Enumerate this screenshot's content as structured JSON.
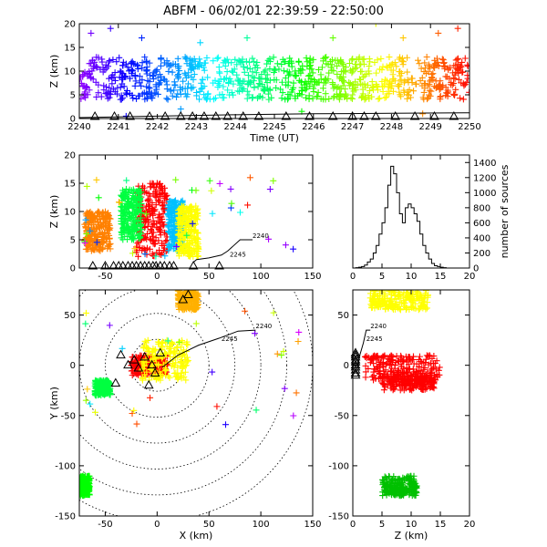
{
  "title": "ABFM - 06/02/01 22:39:59 - 22:50:00",
  "chart_data": [
    {
      "id": "time-height",
      "type": "scatter",
      "xlabel": "Time (UT)",
      "ylabel": "Z (km)",
      "xlim": [
        2240,
        2250
      ],
      "ylim": [
        0,
        20
      ],
      "xticks": [
        "2240",
        "2241",
        "2242",
        "2243",
        "2244",
        "2245",
        "2246",
        "2247",
        "2248",
        "2249",
        "2250"
      ],
      "yticks": [
        "0",
        "5",
        "10",
        "15",
        "20"
      ],
      "color_scale": "time (purple to red)",
      "sources_z_band_km": [
        4,
        13
      ],
      "outliers": [
        {
          "x": 2240.3,
          "y": 18
        },
        {
          "x": 2240.8,
          "y": 19
        },
        {
          "x": 2241.6,
          "y": 17
        },
        {
          "x": 2243.1,
          "y": 16
        },
        {
          "x": 2244.3,
          "y": 17
        },
        {
          "x": 2246.5,
          "y": 17
        },
        {
          "x": 2247.6,
          "y": 20
        },
        {
          "x": 2248.3,
          "y": 17
        },
        {
          "x": 2249.2,
          "y": 18
        },
        {
          "x": 2249.7,
          "y": 19
        },
        {
          "x": 2242.6,
          "y": 2
        },
        {
          "x": 2245.7,
          "y": 1.5
        },
        {
          "x": 2248.8,
          "y": 1
        },
        {
          "x": 2241.2,
          "y": 0.5
        }
      ],
      "trend_line": [
        [
          2240,
          0.2
        ],
        [
          2242,
          0.5
        ],
        [
          2244,
          0.8
        ],
        [
          2246,
          1.0
        ],
        [
          2248,
          1.1
        ],
        [
          2250,
          1.2
        ]
      ],
      "station_markers_x": [
        2240.4,
        2240.9,
        2241.3,
        2241.8,
        2242.2,
        2242.6,
        2242.9,
        2243.2,
        2243.5,
        2243.8,
        2244.2,
        2244.6,
        2245.3,
        2245.9,
        2246.5,
        2247.0,
        2247.3,
        2247.6,
        2248.1,
        2248.6,
        2249.1,
        2249.6
      ]
    },
    {
      "id": "x-height",
      "type": "scatter",
      "xlabel": "",
      "ylabel": "Z (km)",
      "xlim": [
        -75,
        150
      ],
      "ylim": [
        0,
        20
      ],
      "xticks": [
        "-50",
        "0",
        "50",
        "100",
        "150"
      ],
      "yticks": [
        "0",
        "5",
        "10",
        "15",
        "20"
      ],
      "clusters": [
        {
          "x": [
            -20,
            10
          ],
          "z": [
            2,
            15
          ],
          "color": "#ff0000"
        },
        {
          "x": [
            10,
            25
          ],
          "z": [
            3,
            12
          ],
          "color": "#00c0ff"
        },
        {
          "x": [
            20,
            40
          ],
          "z": [
            2,
            11
          ],
          "color": "#ffff00"
        },
        {
          "x": [
            -70,
            -45
          ],
          "z": [
            3,
            10
          ],
          "color": "#ff8000"
        },
        {
          "x": [
            -35,
            -15
          ],
          "z": [
            5,
            14
          ],
          "color": "#00ff40"
        }
      ],
      "track": {
        "points": [
          [
            35,
            1
          ],
          [
            38,
            1.5
          ],
          [
            50,
            1.8
          ],
          [
            62,
            2.3
          ],
          [
            68,
            3
          ],
          [
            80,
            5
          ],
          [
            92,
            5
          ]
        ],
        "labels": [
          {
            "text": "2240",
            "x": 92,
            "z": 5.3
          },
          {
            "text": "2245",
            "x": 70,
            "z": 2.0
          }
        ]
      },
      "station_markers_x": [
        -62,
        -50,
        -42,
        -37,
        -33,
        -28,
        -24,
        -20,
        -16,
        -12,
        -8,
        -4,
        -1,
        3,
        7,
        12,
        16,
        35,
        60
      ]
    },
    {
      "id": "height-histogram",
      "type": "bar",
      "xlabel": "",
      "ylabel": "number of sources",
      "xlim": [
        0,
        20
      ],
      "ylim": [
        0,
        1500
      ],
      "xticks": [
        "0",
        "5",
        "10",
        "15",
        "20"
      ],
      "yticks": [
        "0",
        "200",
        "400",
        "600",
        "800",
        "1000",
        "1200",
        "1400"
      ],
      "bin_width_km": 0.5,
      "bin_starts_km": [
        0,
        0.5,
        1,
        1.5,
        2,
        2.5,
        3,
        3.5,
        4,
        4.5,
        5,
        5.5,
        6,
        6.5,
        7,
        7.5,
        8,
        8.5,
        9,
        9.5,
        10,
        10.5,
        11,
        11.5,
        12,
        12.5,
        13,
        13.5,
        14,
        14.5,
        15,
        15.5,
        16,
        16.5,
        17,
        17.5,
        18,
        18.5,
        19,
        19.5
      ],
      "values": [
        0,
        5,
        10,
        20,
        40,
        80,
        120,
        200,
        300,
        450,
        600,
        800,
        1100,
        1350,
        1250,
        1000,
        720,
        600,
        800,
        850,
        800,
        720,
        620,
        450,
        300,
        200,
        120,
        60,
        30,
        20,
        10,
        5,
        0,
        0,
        0,
        0,
        0,
        0,
        0,
        0
      ]
    },
    {
      "id": "plan-view",
      "type": "scatter",
      "xlabel": "X (km)",
      "ylabel": "Y (km)",
      "xlim": [
        -75,
        150
      ],
      "ylim": [
        -150,
        75
      ],
      "xticks": [
        "-50",
        "0",
        "50",
        "100",
        "150"
      ],
      "yticks": [
        "-150",
        "-100",
        "-50",
        "0",
        "50"
      ],
      "range_rings_km": [
        25,
        50,
        75,
        100,
        125,
        150
      ],
      "ring_center": [
        0,
        0
      ],
      "clusters": [
        {
          "x": [
            -25,
            10
          ],
          "y": [
            -10,
            10
          ],
          "color": "#ff0000"
        },
        {
          "x": [
            -15,
            30
          ],
          "y": [
            -15,
            25
          ],
          "color": "#ffff00"
        },
        {
          "x": [
            20,
            40
          ],
          "y": [
            55,
            75
          ],
          "color": "#ffb000"
        },
        {
          "x": [
            -60,
            -45
          ],
          "y": [
            -30,
            -15
          ],
          "color": "#00ff40"
        },
        {
          "x": [
            -75,
            -65
          ],
          "y": [
            -130,
            -110
          ],
          "color": "#00ff00"
        }
      ],
      "track": {
        "points": [
          [
            5,
            -2
          ],
          [
            20,
            10
          ],
          [
            40,
            20
          ],
          [
            60,
            27
          ],
          [
            78,
            34
          ],
          [
            95,
            35
          ]
        ],
        "labels": [
          {
            "text": "2240",
            "x": 95,
            "y": 37
          },
          {
            "text": "2245",
            "x": 62,
            "y": 24
          }
        ]
      },
      "stations": [
        [
          -35,
          10
        ],
        [
          -28,
          0
        ],
        [
          -22,
          5
        ],
        [
          -18,
          -3
        ],
        [
          -12,
          8
        ],
        [
          -5,
          0
        ],
        [
          -2,
          -8
        ],
        [
          3,
          12
        ],
        [
          -8,
          -20
        ],
        [
          25,
          65
        ],
        [
          30,
          70
        ],
        [
          -40,
          -18
        ]
      ]
    },
    {
      "id": "z-y-view",
      "type": "scatter",
      "xlabel": "Z (km)",
      "ylabel": "",
      "xlim": [
        0,
        20
      ],
      "ylim": [
        -150,
        75
      ],
      "xticks": [
        "0",
        "5",
        "10",
        "15",
        "20"
      ],
      "yticks": [
        "-150",
        "-100",
        "-50",
        "0",
        "50"
      ],
      "clusters": [
        {
          "z": [
            2,
            15
          ],
          "y": [
            -15,
            10
          ],
          "color": "#ff0000"
        },
        {
          "z": [
            3,
            13
          ],
          "y": [
            55,
            75
          ],
          "color": "#ffff00"
        },
        {
          "z": [
            5,
            11
          ],
          "y": [
            -130,
            -110
          ],
          "color": "#00c000"
        },
        {
          "z": [
            5,
            14
          ],
          "y": [
            -25,
            -10
          ],
          "color": "#ff0000"
        }
      ],
      "track": {
        "points": [
          [
            0.8,
            -2
          ],
          [
            1.2,
            10
          ],
          [
            1.8,
            22
          ],
          [
            2.3,
            35
          ],
          [
            3,
            35
          ]
        ],
        "labels": [
          {
            "text": "2240",
            "z": 3,
            "y": 37
          },
          {
            "text": "2245",
            "z": 2.3,
            "y": 24
          }
        ]
      },
      "station_markers_y": [
        -10,
        -5,
        -2,
        0,
        3,
        5,
        8,
        10,
        12,
        -8
      ]
    }
  ]
}
